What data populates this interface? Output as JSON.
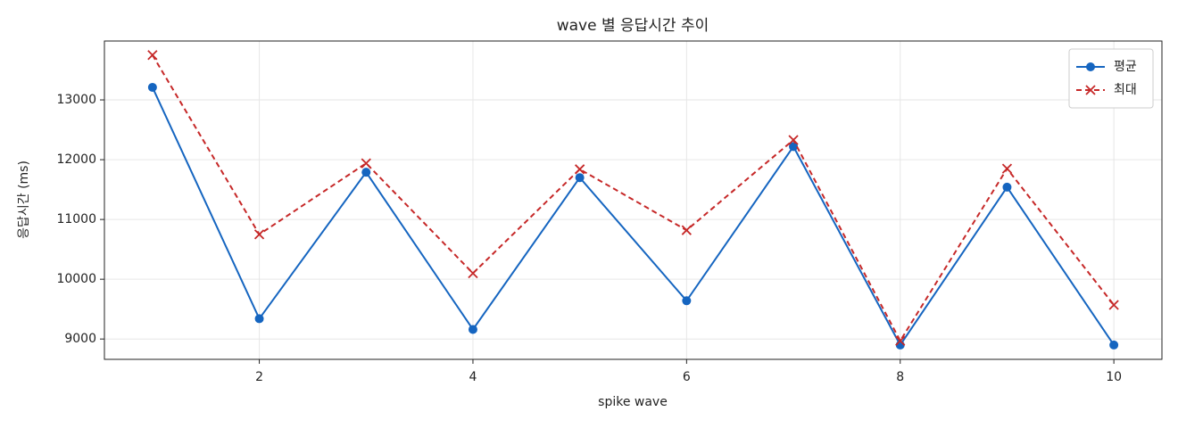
{
  "chart_data": {
    "type": "line",
    "title": "wave 별 응답시간 추이",
    "xlabel": "spike wave",
    "ylabel": "응답시간 (ms)",
    "x": [
      1,
      2,
      3,
      4,
      5,
      6,
      7,
      8,
      9,
      10
    ],
    "series": [
      {
        "name": "평균",
        "color": "#1565c0",
        "dash": false,
        "marker": "circle",
        "values": [
          13210,
          9340,
          11790,
          9160,
          11700,
          9640,
          12220,
          8900,
          11540,
          8900
        ]
      },
      {
        "name": "최대",
        "color": "#c62828",
        "dash": true,
        "marker": "x",
        "values": [
          13750,
          10750,
          11940,
          10100,
          11840,
          10820,
          12330,
          8970,
          11850,
          9570
        ]
      }
    ],
    "xlim": [
      0.55,
      10.45
    ],
    "ylim": [
      8660,
      13985
    ],
    "xticks": [
      2,
      4,
      6,
      8,
      10
    ],
    "yticks": [
      9000,
      10000,
      11000,
      12000,
      13000
    ],
    "grid": true,
    "legend": "upper right"
  }
}
